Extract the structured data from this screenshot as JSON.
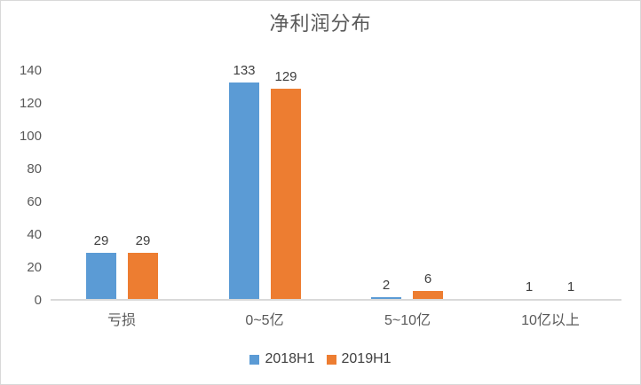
{
  "chart_data": {
    "type": "bar",
    "title": "净利润分布",
    "categories": [
      "亏损",
      "0~5亿",
      "5~10亿",
      "10亿以上"
    ],
    "series": [
      {
        "name": "2018H1",
        "color": "#5B9BD5",
        "values": [
          29,
          133,
          2,
          1
        ]
      },
      {
        "name": "2019H1",
        "color": "#ED7D31",
        "values": [
          29,
          129,
          6,
          1
        ]
      }
    ],
    "xlabel": "",
    "ylabel": "",
    "ylim": [
      0,
      140
    ],
    "ytick_step": 20,
    "yticks": [
      0,
      20,
      40,
      60,
      80,
      100,
      120,
      140
    ],
    "grid": false,
    "data_labels": true,
    "legend_position": "bottom"
  },
  "colors": {
    "background": "#FFFFFF",
    "border": "#D9D9D9",
    "axis_line": "#D9D9D9",
    "tick_text": "#595959",
    "title_text": "#595959",
    "data_label_text": "#404040",
    "series_blue": "#5B9BD5",
    "series_orange": "#ED7D31"
  }
}
